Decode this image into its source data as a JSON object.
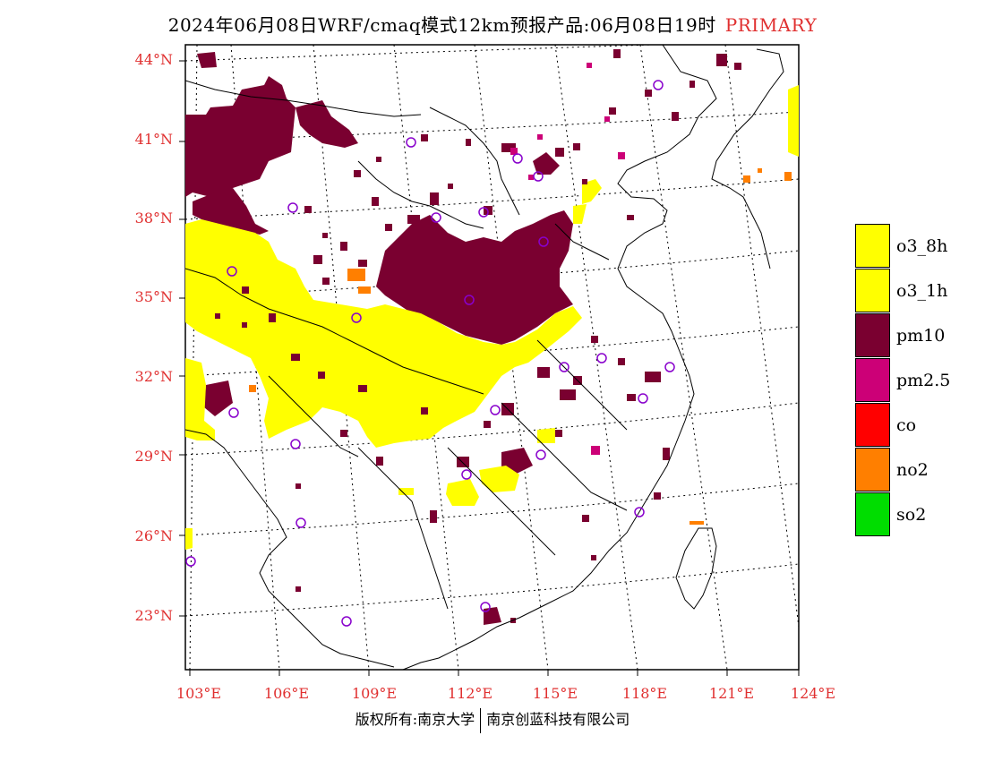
{
  "title": {
    "main": "2024年06月08日WRF/cmaq模式12km预报产品:06月08日19时",
    "primary": "PRIMARY"
  },
  "axes": {
    "lat_labels": [
      "44°N",
      "41°N",
      "38°N",
      "35°N",
      "32°N",
      "29°N",
      "26°N",
      "23°N"
    ],
    "lon_labels": [
      "103°E",
      "106°E",
      "109°E",
      "112°E",
      "115°E",
      "118°E",
      "121°E",
      "124°E"
    ]
  },
  "legend": [
    {
      "label": "o3_8h",
      "color": "#ffff00"
    },
    {
      "label": "o3_1h",
      "color": "#ffff00"
    },
    {
      "label": "pm10",
      "color": "#7a0030"
    },
    {
      "label": "pm2.5",
      "color": "#cc0077"
    },
    {
      "label": "co",
      "color": "#ff0000"
    },
    {
      "label": "no2",
      "color": "#ff7f00"
    },
    {
      "label": "so2",
      "color": "#00dd00"
    }
  ],
  "footer": {
    "left": "版权所有:南京大学",
    "right": "南京创蓝科技有限公司"
  },
  "colors": {
    "label_red": "#e03030",
    "station_circle": "#8800cc"
  }
}
